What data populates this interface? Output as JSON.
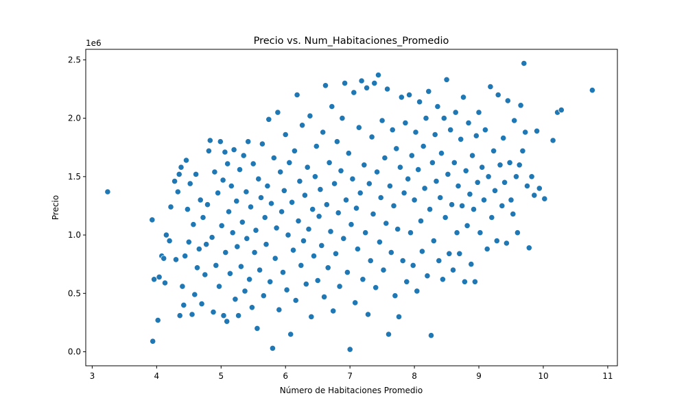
{
  "chart_data": {
    "type": "scatter",
    "title": "Precio vs. Num_Habitaciones_Promedio",
    "xlabel": "Número de Habitaciones Promedio",
    "ylabel": "Precio",
    "y_offset_label": "1e6",
    "xlim": [
      2.9,
      11.15
    ],
    "ylim": [
      -0.12,
      2.59
    ],
    "x_ticks": [
      3,
      4,
      5,
      6,
      7,
      8,
      9,
      10,
      11
    ],
    "x_tick_labels": [
      "3",
      "4",
      "5",
      "6",
      "7",
      "8",
      "9",
      "10",
      "11"
    ],
    "y_ticks": [
      0.0,
      0.5,
      1.0,
      1.5,
      2.0,
      2.5
    ],
    "y_tick_labels": [
      "0.0",
      "0.5",
      "1.0",
      "1.5",
      "2.0",
      "2.5"
    ],
    "grid": false,
    "marker_color": "#1f77b4",
    "marker_edge_color": "#ffffff",
    "series": [
      {
        "points": [
          [
            3.24,
            1.37
          ],
          [
            3.93,
            1.13
          ],
          [
            3.94,
            0.09
          ],
          [
            3.96,
            0.62
          ],
          [
            4.02,
            0.27
          ],
          [
            4.04,
            0.64
          ],
          [
            4.08,
            0.82
          ],
          [
            4.11,
            0.8
          ],
          [
            4.13,
            0.59
          ],
          [
            4.15,
            1.0
          ],
          [
            4.2,
            0.95
          ],
          [
            4.22,
            1.24
          ],
          [
            4.28,
            1.46
          ],
          [
            4.3,
            0.79
          ],
          [
            4.33,
            1.37
          ],
          [
            4.35,
            1.52
          ],
          [
            4.36,
            0.31
          ],
          [
            4.38,
            1.58
          ],
          [
            4.4,
            0.56
          ],
          [
            4.42,
            0.4
          ],
          [
            4.44,
            0.82
          ],
          [
            4.46,
            1.64
          ],
          [
            4.48,
            1.22
          ],
          [
            4.5,
            0.94
          ],
          [
            4.52,
            1.44
          ],
          [
            4.55,
            0.32
          ],
          [
            4.57,
            1.09
          ],
          [
            4.59,
            0.49
          ],
          [
            4.61,
            1.52
          ],
          [
            4.63,
            0.72
          ],
          [
            4.66,
            0.88
          ],
          [
            4.68,
            1.3
          ],
          [
            4.7,
            0.41
          ],
          [
            4.72,
            1.15
          ],
          [
            4.75,
            0.66
          ],
          [
            4.77,
            0.92
          ],
          [
            4.79,
            1.26
          ],
          [
            4.81,
            1.72
          ],
          [
            4.83,
            1.81
          ],
          [
            4.86,
            0.98
          ],
          [
            4.88,
            0.34
          ],
          [
            4.9,
            1.54
          ],
          [
            4.92,
            0.74
          ],
          [
            4.95,
            1.36
          ],
          [
            4.97,
            0.56
          ],
          [
            4.99,
            1.8
          ],
          [
            5.01,
            1.08
          ],
          [
            5.03,
            1.47
          ],
          [
            5.04,
            0.31
          ],
          [
            5.06,
            1.71
          ],
          [
            5.07,
            0.85
          ],
          [
            5.09,
            0.26
          ],
          [
            5.1,
            1.61
          ],
          [
            5.12,
            1.2
          ],
          [
            5.14,
            0.67
          ],
          [
            5.16,
            1.42
          ],
          [
            5.18,
            1.02
          ],
          [
            5.2,
            1.73
          ],
          [
            5.22,
            0.45
          ],
          [
            5.24,
            1.29
          ],
          [
            5.25,
            0.9
          ],
          [
            5.27,
            0.31
          ],
          [
            5.29,
            1.56
          ],
          [
            5.31,
            0.73
          ],
          [
            5.33,
            1.11
          ],
          [
            5.35,
            1.68
          ],
          [
            5.37,
            0.52
          ],
          [
            5.39,
            1.37
          ],
          [
            5.4,
            0.97
          ],
          [
            5.42,
            1.8
          ],
          [
            5.44,
            0.62
          ],
          [
            5.46,
            1.24
          ],
          [
            5.48,
            0.38
          ],
          [
            5.5,
            1.61
          ],
          [
            5.52,
            0.85
          ],
          [
            5.54,
            1.04
          ],
          [
            5.56,
            0.2
          ],
          [
            5.58,
            1.48
          ],
          [
            5.6,
            0.7
          ],
          [
            5.62,
            1.32
          ],
          [
            5.64,
            1.78
          ],
          [
            5.66,
            0.48
          ],
          [
            5.68,
            1.15
          ],
          [
            5.7,
            0.92
          ],
          [
            5.72,
            1.42
          ],
          [
            5.74,
            1.99
          ],
          [
            5.76,
            0.6
          ],
          [
            5.78,
            1.27
          ],
          [
            5.8,
            0.03
          ],
          [
            5.82,
            1.66
          ],
          [
            5.84,
            0.8
          ],
          [
            5.86,
            1.06
          ],
          [
            5.88,
            2.05
          ],
          [
            5.9,
            0.36
          ],
          [
            5.92,
            1.54
          ],
          [
            5.94,
            1.2
          ],
          [
            5.96,
            0.68
          ],
          [
            5.98,
            1.38
          ],
          [
            6.0,
            1.86
          ],
          [
            6.02,
            0.53
          ],
          [
            6.04,
            1.0
          ],
          [
            6.06,
            1.62
          ],
          [
            6.08,
            0.15
          ],
          [
            6.1,
            1.28
          ],
          [
            6.12,
            0.87
          ],
          [
            6.14,
            1.72
          ],
          [
            6.16,
            0.44
          ],
          [
            6.18,
            2.2
          ],
          [
            6.2,
            1.12
          ],
          [
            6.22,
            1.46
          ],
          [
            6.24,
            0.74
          ],
          [
            6.26,
            1.94
          ],
          [
            6.28,
            0.95
          ],
          [
            6.3,
            1.34
          ],
          [
            6.32,
            0.58
          ],
          [
            6.34,
            1.58
          ],
          [
            6.36,
            1.05
          ],
          [
            6.38,
            2.02
          ],
          [
            6.4,
            0.3
          ],
          [
            6.42,
            1.22
          ],
          [
            6.44,
            0.82
          ],
          [
            6.46,
            1.5
          ],
          [
            6.48,
            1.76
          ],
          [
            6.5,
            0.61
          ],
          [
            6.52,
            1.16
          ],
          [
            6.54,
            1.39
          ],
          [
            6.56,
            0.91
          ],
          [
            6.58,
            1.88
          ],
          [
            6.6,
            0.47
          ],
          [
            6.62,
            2.28
          ],
          [
            6.64,
            1.26
          ],
          [
            6.66,
            0.72
          ],
          [
            6.68,
            1.62
          ],
          [
            6.7,
            1.03
          ],
          [
            6.72,
            2.1
          ],
          [
            6.74,
            0.35
          ],
          [
            6.76,
            1.44
          ],
          [
            6.78,
            0.84
          ],
          [
            6.8,
            1.8
          ],
          [
            6.82,
            1.19
          ],
          [
            6.84,
            0.56
          ],
          [
            6.86,
            1.55
          ],
          [
            6.88,
            2.0
          ],
          [
            6.9,
            0.97
          ],
          [
            6.92,
            2.3
          ],
          [
            6.94,
            1.3
          ],
          [
            6.96,
            0.68
          ],
          [
            6.98,
            1.7
          ],
          [
            7.0,
            0.02
          ],
          [
            7.02,
            1.09
          ],
          [
            7.04,
            1.48
          ],
          [
            7.06,
            2.22
          ],
          [
            7.08,
            0.42
          ],
          [
            7.1,
            1.23
          ],
          [
            7.12,
            0.88
          ],
          [
            7.14,
            1.92
          ],
          [
            7.16,
            1.36
          ],
          [
            7.18,
            2.32
          ],
          [
            7.2,
            0.62
          ],
          [
            7.22,
            1.6
          ],
          [
            7.24,
            1.02
          ],
          [
            7.26,
            2.26
          ],
          [
            7.28,
            0.32
          ],
          [
            7.3,
            1.44
          ],
          [
            7.32,
            0.78
          ],
          [
            7.34,
            1.84
          ],
          [
            7.36,
            1.18
          ],
          [
            7.38,
            2.3
          ],
          [
            7.4,
            0.55
          ],
          [
            7.42,
            1.54
          ],
          [
            7.44,
            2.37
          ],
          [
            7.46,
            0.94
          ],
          [
            7.48,
            1.32
          ],
          [
            7.5,
            1.98
          ],
          [
            7.52,
            0.7
          ],
          [
            7.54,
            1.66
          ],
          [
            7.56,
            1.1
          ],
          [
            7.58,
            2.25
          ],
          [
            7.6,
            0.15
          ],
          [
            7.62,
            1.42
          ],
          [
            7.64,
            0.85
          ],
          [
            7.66,
            1.9
          ],
          [
            7.68,
            1.25
          ],
          [
            7.7,
            0.48
          ],
          [
            7.72,
            1.74
          ],
          [
            7.74,
            1.05
          ],
          [
            7.76,
            0.3
          ],
          [
            7.78,
            1.58
          ],
          [
            7.8,
            2.18
          ],
          [
            7.82,
            0.78
          ],
          [
            7.84,
            1.36
          ],
          [
            7.86,
            1.96
          ],
          [
            7.88,
            0.6
          ],
          [
            7.9,
            1.48
          ],
          [
            7.92,
            2.2
          ],
          [
            7.94,
            1.02
          ],
          [
            7.96,
            1.68
          ],
          [
            7.98,
            0.74
          ],
          [
            8.0,
            1.3
          ],
          [
            8.02,
            1.88
          ],
          [
            8.04,
            0.52
          ],
          [
            8.06,
            1.56
          ],
          [
            8.08,
            2.14
          ],
          [
            8.1,
            1.12
          ],
          [
            8.12,
            0.86
          ],
          [
            8.14,
            1.76
          ],
          [
            8.16,
            1.4
          ],
          [
            8.18,
            2.0
          ],
          [
            8.2,
            0.65
          ],
          [
            8.22,
            2.23
          ],
          [
            8.24,
            1.22
          ],
          [
            8.26,
            0.14
          ],
          [
            8.28,
            1.62
          ],
          [
            8.3,
            0.95
          ],
          [
            8.32,
            1.86
          ],
          [
            8.34,
            1.46
          ],
          [
            8.36,
            2.1
          ],
          [
            8.38,
            0.78
          ],
          [
            8.4,
            1.32
          ],
          [
            8.42,
            1.7
          ],
          [
            8.44,
            0.62
          ],
          [
            8.46,
            2.0
          ],
          [
            8.48,
            1.15
          ],
          [
            8.5,
            2.33
          ],
          [
            8.52,
            1.52
          ],
          [
            8.54,
            0.84
          ],
          [
            8.56,
            1.9
          ],
          [
            8.58,
            1.26
          ],
          [
            8.6,
            0.7
          ],
          [
            8.62,
            1.62
          ],
          [
            8.64,
            2.05
          ],
          [
            8.66,
            1.02
          ],
          [
            8.68,
            1.42
          ],
          [
            8.7,
            0.84
          ],
          [
            8.72,
            1.82
          ],
          [
            8.74,
            1.25
          ],
          [
            8.76,
            2.18
          ],
          [
            8.78,
            0.6
          ],
          [
            8.8,
            1.55
          ],
          [
            8.82,
            1.08
          ],
          [
            8.84,
            1.96
          ],
          [
            8.86,
            1.35
          ],
          [
            8.88,
            0.75
          ],
          [
            8.9,
            1.68
          ],
          [
            8.92,
            1.22
          ],
          [
            8.94,
            0.6
          ],
          [
            8.96,
            1.85
          ],
          [
            8.98,
            1.45
          ],
          [
            9.0,
            2.05
          ],
          [
            9.02,
            1.02
          ],
          [
            9.05,
            1.58
          ],
          [
            9.08,
            1.3
          ],
          [
            9.1,
            1.9
          ],
          [
            9.13,
            0.88
          ],
          [
            9.15,
            1.5
          ],
          [
            9.18,
            2.27
          ],
          [
            9.2,
            1.15
          ],
          [
            9.23,
            1.72
          ],
          [
            9.25,
            1.38
          ],
          [
            9.28,
            0.95
          ],
          [
            9.3,
            2.2
          ],
          [
            9.33,
            1.6
          ],
          [
            9.36,
            1.25
          ],
          [
            9.38,
            1.83
          ],
          [
            9.4,
            1.45
          ],
          [
            9.43,
            0.93
          ],
          [
            9.45,
            2.15
          ],
          [
            9.48,
            1.62
          ],
          [
            9.5,
            1.3
          ],
          [
            9.53,
            1.18
          ],
          [
            9.55,
            1.98
          ],
          [
            9.58,
            1.5
          ],
          [
            9.6,
            1.02
          ],
          [
            9.63,
            1.6
          ],
          [
            9.65,
            2.11
          ],
          [
            9.68,
            1.72
          ],
          [
            9.7,
            2.47
          ],
          [
            9.72,
            1.88
          ],
          [
            9.75,
            1.42
          ],
          [
            9.78,
            0.89
          ],
          [
            9.82,
            1.5
          ],
          [
            9.86,
            1.34
          ],
          [
            9.9,
            1.89
          ],
          [
            9.94,
            1.4
          ],
          [
            10.02,
            1.31
          ],
          [
            10.15,
            1.81
          ],
          [
            10.22,
            2.05
          ],
          [
            10.28,
            2.07
          ],
          [
            10.76,
            2.24
          ]
        ]
      }
    ]
  }
}
